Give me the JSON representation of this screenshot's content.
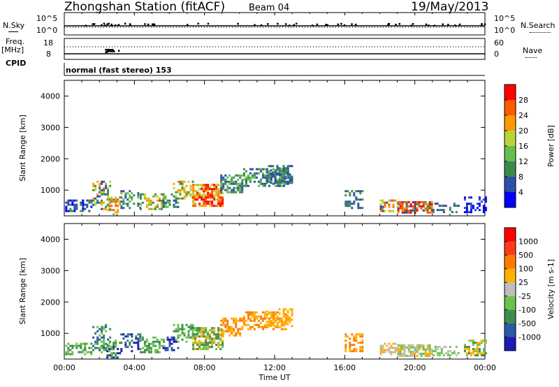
{
  "header": {
    "station": "Zhongshan Station (fitACF)",
    "beam": "Beam 04",
    "date": "19/May/2013"
  },
  "top_panels": {
    "nsky_label": "N.Sky",
    "nsky_ticks": [
      "10^5",
      "10^0"
    ],
    "nsearch_label": "N.Search",
    "nsearch_ticks": [
      "10^5",
      "10^0"
    ],
    "freq_label": "Freq.",
    "freq_unit": "[MHz]",
    "freq_ticks": [
      "18",
      "8"
    ],
    "nave_label": "Nave",
    "nave_ticks": [
      "60",
      "0"
    ],
    "cpid_label": "CPID",
    "cpid_value": "normal (fast stereo) 153"
  },
  "chart_data": [
    {
      "type": "heatmap",
      "name": "power",
      "ylabel": "Slant Range [km]",
      "xlabel": "Time UT",
      "ylim": [
        180,
        4500
      ],
      "xlim": [
        0,
        24
      ],
      "y_ticks": [
        "4000",
        "3000",
        "2000",
        "1000"
      ],
      "colorbar": {
        "label": "Power [dB]",
        "ticks": [
          "28",
          "24",
          "20",
          "16",
          "12",
          "8",
          "4"
        ],
        "colors": [
          "#0000ff",
          "#2d4fa8",
          "#3b8a4c",
          "#66bf4c",
          "#b9d43b",
          "#ff9900",
          "#ff5a00",
          "#ff0000"
        ]
      }
    },
    {
      "type": "heatmap",
      "name": "velocity",
      "ylabel": "Slant Range [km]",
      "xlabel": "Time UT",
      "ylim": [
        180,
        4500
      ],
      "xlim": [
        0,
        24
      ],
      "y_ticks": [
        "4000",
        "3000",
        "2000",
        "1000"
      ],
      "x_ticks": [
        "00:00",
        "04:00",
        "08:00",
        "12:00",
        "16:00",
        "20:00",
        "00:00"
      ],
      "colorbar": {
        "label": "Velocity [m s-1]",
        "ticks": [
          "1000",
          "500",
          "100",
          "25",
          "-25",
          "-100",
          "-500",
          "-1000"
        ],
        "colors": [
          "#1a1ab5",
          "#2d58a6",
          "#3c8c4e",
          "#6cc34a",
          "#bdbdbd",
          "#ffb000",
          "#ff7a00",
          "#ff3a1a",
          "#ff0000"
        ]
      }
    }
  ],
  "colors": {
    "axis": "#000000",
    "frame": "#000000"
  }
}
